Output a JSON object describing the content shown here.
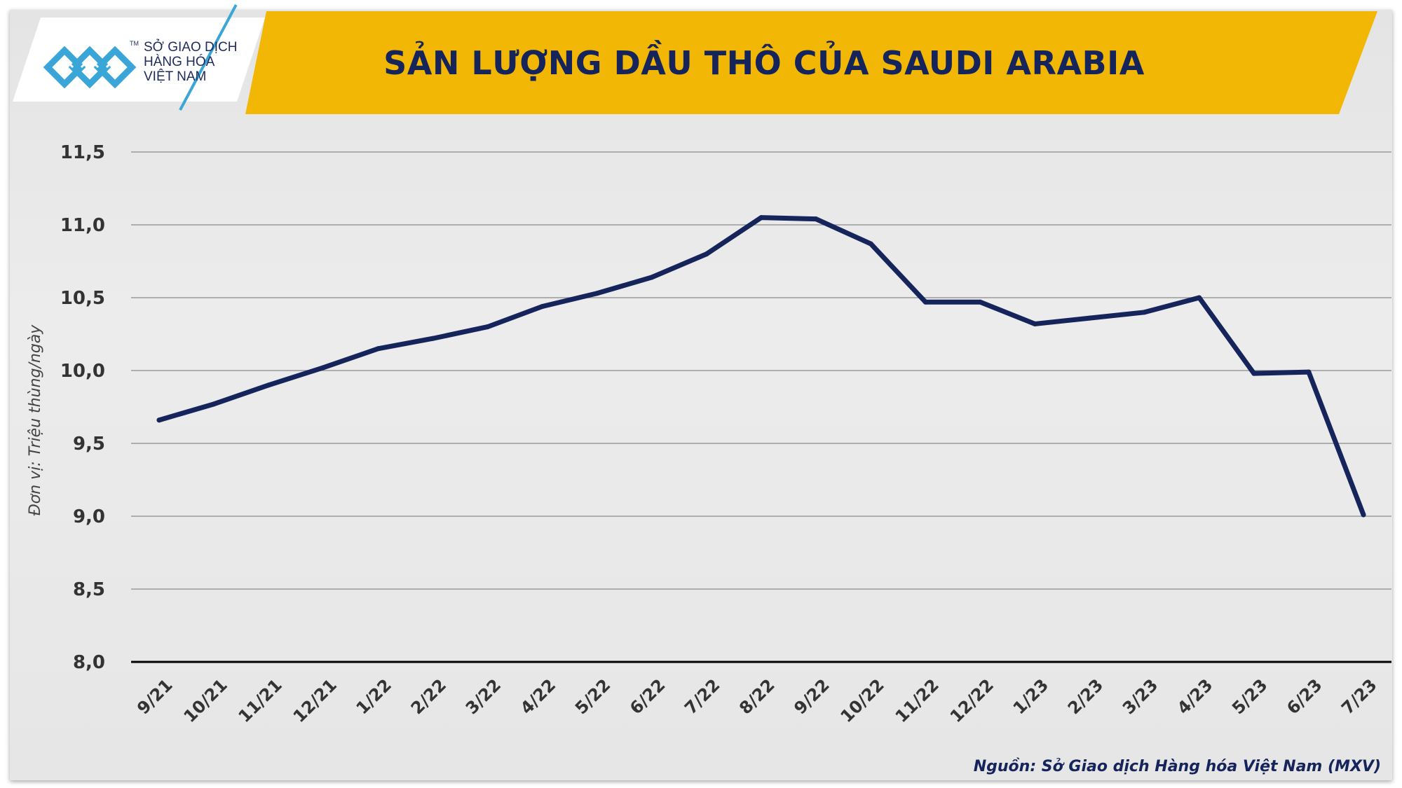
{
  "header": {
    "title": "SẢN LƯỢNG DẦU THÔ CỦA SAUDI ARABIA",
    "logo_lines": [
      "SỞ GIAO DỊCH",
      "HÀNG HÓA",
      "VIỆT NAM"
    ],
    "logo_tm": "TM"
  },
  "footer": {
    "source": "Nguồn: Sở Giao dịch Hàng hóa Việt Nam (MXV)"
  },
  "colors": {
    "banner": "#f2b705",
    "title": "#16245c",
    "line": "#16245c",
    "logo_blue": "#3aa6d8"
  },
  "chart_data": {
    "type": "line",
    "title": "SẢN LƯỢNG DẦU THÔ CỦA SAUDI ARABIA",
    "xlabel": "",
    "ylabel": "Đơn vị: Triệu thùng/ngày",
    "ylim": [
      8.0,
      11.5
    ],
    "yticks": [
      "11,5",
      "11,0",
      "10,5",
      "10,0",
      "9,5",
      "9,0",
      "8,5",
      "8,0"
    ],
    "ytick_values": [
      11.5,
      11.0,
      10.5,
      10.0,
      9.5,
      9.0,
      8.5,
      8.0
    ],
    "grid": true,
    "legend": "none",
    "categories": [
      "9/21",
      "10/21",
      "11/21",
      "12/21",
      "1/22",
      "2/22",
      "3/22",
      "4/22",
      "5/22",
      "6/22",
      "7/22",
      "8/22",
      "9/22",
      "10/22",
      "11/22",
      "12/22",
      "1/23",
      "2/23",
      "3/23",
      "4/23",
      "5/23",
      "6/23",
      "7/23"
    ],
    "series": [
      {
        "values": [
          9.66,
          9.77,
          9.9,
          10.02,
          10.15,
          10.22,
          10.3,
          10.44,
          10.53,
          10.64,
          10.8,
          11.05,
          11.04,
          10.87,
          10.47,
          10.47,
          10.32,
          10.36,
          10.4,
          10.5,
          9.98,
          9.99,
          9.01
        ]
      }
    ]
  }
}
